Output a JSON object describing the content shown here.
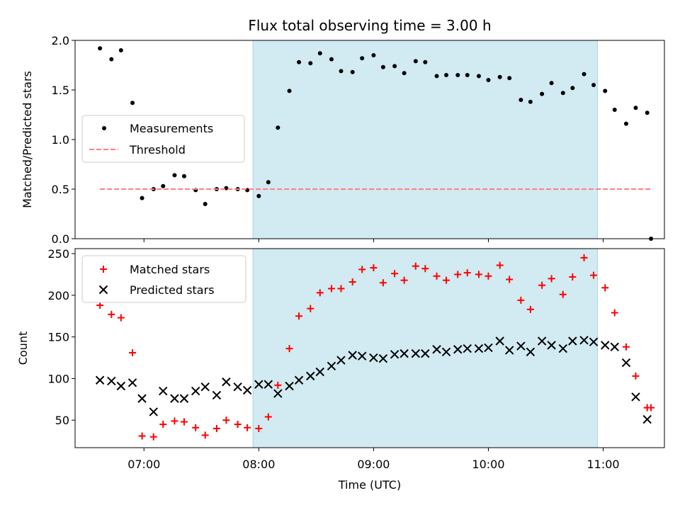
{
  "chart_data": [
    {
      "type": "scatter",
      "title": "Flux total observing time = 3.00 h",
      "xlabel": "",
      "ylabel": "Matched/Predicted stars",
      "xlim": [
        "06:24",
        "11:32"
      ],
      "ylim": [
        0,
        2.0
      ],
      "yticks": [
        0.0,
        0.5,
        1.0,
        1.5,
        2.0
      ],
      "ytick_labels": [
        "0.0",
        "0.5",
        "1.0",
        "1.5",
        "2.0"
      ],
      "grid": false,
      "legend_position": "center-left",
      "highlight_span": [
        "07:57",
        "10:57"
      ],
      "highlight_color": "#add8e6",
      "series": [
        {
          "name": "Measurements",
          "kind": "scatter",
          "marker": "dot",
          "color": "#000000",
          "points": [
            [
              "06:37",
              1.92
            ],
            [
              "06:43",
              1.81
            ],
            [
              "06:48",
              1.9
            ],
            [
              "06:54",
              1.37
            ],
            [
              "06:59",
              0.41
            ],
            [
              "07:05",
              0.5
            ],
            [
              "07:10",
              0.53
            ],
            [
              "07:16",
              0.64
            ],
            [
              "07:21",
              0.63
            ],
            [
              "07:27",
              0.49
            ],
            [
              "07:32",
              0.35
            ],
            [
              "07:38",
              0.5
            ],
            [
              "07:43",
              0.51
            ],
            [
              "07:49",
              0.5
            ],
            [
              "07:54",
              0.49
            ],
            [
              "08:00",
              0.43
            ],
            [
              "08:05",
              0.57
            ],
            [
              "08:10",
              1.12
            ],
            [
              "08:16",
              1.49
            ],
            [
              "08:21",
              1.78
            ],
            [
              "08:27",
              1.77
            ],
            [
              "08:32",
              1.87
            ],
            [
              "08:38",
              1.81
            ],
            [
              "08:43",
              1.69
            ],
            [
              "08:49",
              1.68
            ],
            [
              "08:54",
              1.82
            ],
            [
              "09:00",
              1.85
            ],
            [
              "09:05",
              1.73
            ],
            [
              "09:11",
              1.74
            ],
            [
              "09:16",
              1.67
            ],
            [
              "09:22",
              1.79
            ],
            [
              "09:27",
              1.78
            ],
            [
              "09:33",
              1.64
            ],
            [
              "09:38",
              1.65
            ],
            [
              "09:44",
              1.65
            ],
            [
              "09:49",
              1.65
            ],
            [
              "09:55",
              1.64
            ],
            [
              "10:00",
              1.6
            ],
            [
              "10:06",
              1.63
            ],
            [
              "10:11",
              1.62
            ],
            [
              "10:17",
              1.4
            ],
            [
              "10:22",
              1.38
            ],
            [
              "10:28",
              1.46
            ],
            [
              "10:33",
              1.57
            ],
            [
              "10:39",
              1.47
            ],
            [
              "10:44",
              1.52
            ],
            [
              "10:50",
              1.66
            ],
            [
              "10:55",
              1.55
            ],
            [
              "11:01",
              1.49
            ],
            [
              "11:06",
              1.3
            ],
            [
              "11:12",
              1.16
            ],
            [
              "11:17",
              1.32
            ],
            [
              "11:23",
              1.27
            ],
            [
              "11:25",
              0.0
            ]
          ]
        },
        {
          "name": "Threshold",
          "kind": "line",
          "style": "dashed",
          "color": "#ff7f7f",
          "points": [
            [
              "06:37",
              0.5
            ],
            [
              "11:25",
              0.5
            ]
          ]
        }
      ]
    },
    {
      "type": "scatter",
      "title": "",
      "xlabel": "Time (UTC)",
      "ylabel": "Count",
      "xlim": [
        "06:24",
        "11:32"
      ],
      "ylim": [
        17,
        256
      ],
      "yticks": [
        50,
        100,
        150,
        200,
        250
      ],
      "ytick_labels": [
        "50",
        "100",
        "150",
        "200",
        "250"
      ],
      "xticks": [
        "07:00",
        "08:00",
        "09:00",
        "10:00",
        "11:00"
      ],
      "xtick_labels": [
        "07:00",
        "08:00",
        "09:00",
        "10:00",
        "11:00"
      ],
      "grid": false,
      "legend_position": "top-left",
      "highlight_span": [
        "07:57",
        "10:57"
      ],
      "highlight_color": "#add8e6",
      "series": [
        {
          "name": "Matched stars",
          "kind": "scatter",
          "marker": "plus",
          "color": "#ff0000",
          "points": [
            [
              "06:37",
              188
            ],
            [
              "06:43",
              177
            ],
            [
              "06:48",
              173
            ],
            [
              "06:54",
              131
            ],
            [
              "06:59",
              31
            ],
            [
              "07:05",
              30
            ],
            [
              "07:10",
              45
            ],
            [
              "07:16",
              49
            ],
            [
              "07:21",
              48
            ],
            [
              "07:27",
              41
            ],
            [
              "07:32",
              32
            ],
            [
              "07:38",
              40
            ],
            [
              "07:43",
              50
            ],
            [
              "07:49",
              45
            ],
            [
              "07:54",
              41
            ],
            [
              "08:00",
              40
            ],
            [
              "08:05",
              54
            ],
            [
              "08:10",
              92
            ],
            [
              "08:16",
              136
            ],
            [
              "08:21",
              175
            ],
            [
              "08:27",
              184
            ],
            [
              "08:32",
              203
            ],
            [
              "08:38",
              208
            ],
            [
              "08:43",
              208
            ],
            [
              "08:49",
              216
            ],
            [
              "08:54",
              231
            ],
            [
              "09:00",
              233
            ],
            [
              "09:05",
              215
            ],
            [
              "09:11",
              226
            ],
            [
              "09:16",
              218
            ],
            [
              "09:22",
              235
            ],
            [
              "09:27",
              232
            ],
            [
              "09:33",
              223
            ],
            [
              "09:38",
              218
            ],
            [
              "09:44",
              225
            ],
            [
              "09:49",
              227
            ],
            [
              "09:55",
              225
            ],
            [
              "10:00",
              223
            ],
            [
              "10:06",
              236
            ],
            [
              "10:11",
              219
            ],
            [
              "10:17",
              194
            ],
            [
              "10:22",
              183
            ],
            [
              "10:28",
              212
            ],
            [
              "10:33",
              220
            ],
            [
              "10:39",
              201
            ],
            [
              "10:44",
              222
            ],
            [
              "10:50",
              245
            ],
            [
              "10:55",
              224
            ],
            [
              "11:01",
              209
            ],
            [
              "11:06",
              179
            ],
            [
              "11:12",
              138
            ],
            [
              "11:17",
              103
            ],
            [
              "11:23",
              65
            ],
            [
              "11:25",
              65
            ]
          ]
        },
        {
          "name": "Predicted stars",
          "kind": "scatter",
          "marker": "x",
          "color": "#000000",
          "points": [
            [
              "06:37",
              98
            ],
            [
              "06:43",
              97
            ],
            [
              "06:48",
              91
            ],
            [
              "06:54",
              95
            ],
            [
              "06:59",
              76
            ],
            [
              "07:05",
              60
            ],
            [
              "07:10",
              85
            ],
            [
              "07:16",
              76
            ],
            [
              "07:21",
              76
            ],
            [
              "07:27",
              85
            ],
            [
              "07:32",
              90
            ],
            [
              "07:38",
              80
            ],
            [
              "07:43",
              96
            ],
            [
              "07:49",
              90
            ],
            [
              "07:54",
              86
            ],
            [
              "08:00",
              93
            ],
            [
              "08:05",
              93
            ],
            [
              "08:10",
              82
            ],
            [
              "08:16",
              91
            ],
            [
              "08:21",
              98
            ],
            [
              "08:27",
              103
            ],
            [
              "08:32",
              108
            ],
            [
              "08:38",
              115
            ],
            [
              "08:43",
              122
            ],
            [
              "08:49",
              128
            ],
            [
              "08:54",
              127
            ],
            [
              "09:00",
              125
            ],
            [
              "09:05",
              124
            ],
            [
              "09:11",
              129
            ],
            [
              "09:16",
              130
            ],
            [
              "09:22",
              130
            ],
            [
              "09:27",
              130
            ],
            [
              "09:33",
              135
            ],
            [
              "09:38",
              132
            ],
            [
              "09:44",
              135
            ],
            [
              "09:49",
              136
            ],
            [
              "09:55",
              136
            ],
            [
              "10:00",
              137
            ],
            [
              "10:06",
              145
            ],
            [
              "10:11",
              134
            ],
            [
              "10:17",
              139
            ],
            [
              "10:22",
              132
            ],
            [
              "10:28",
              145
            ],
            [
              "10:33",
              140
            ],
            [
              "10:39",
              136
            ],
            [
              "10:44",
              145
            ],
            [
              "10:50",
              146
            ],
            [
              "10:55",
              144
            ],
            [
              "11:01",
              140
            ],
            [
              "11:06",
              138
            ],
            [
              "11:12",
              119
            ],
            [
              "11:17",
              78
            ],
            [
              "11:23",
              51
            ]
          ]
        }
      ]
    }
  ]
}
